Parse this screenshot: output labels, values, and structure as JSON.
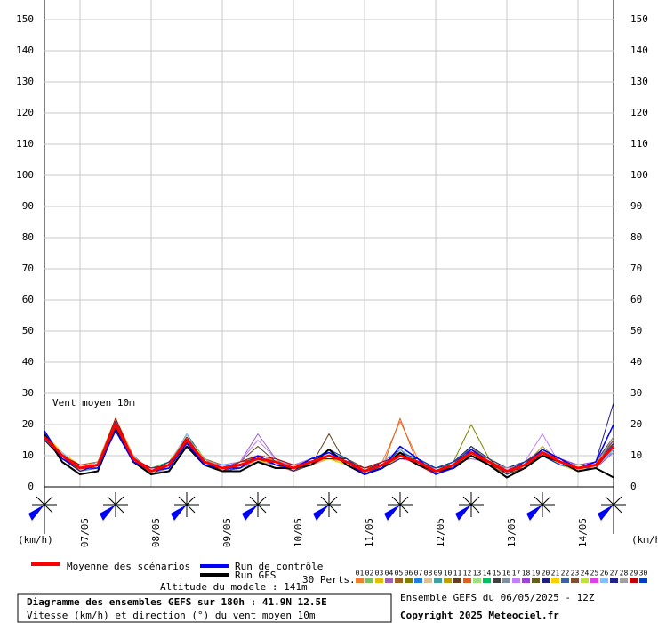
{
  "chart_data": {
    "type": "line",
    "annotation": "Vent moyen 10m",
    "y_unit_left": "(km/h)",
    "y_unit_right": "(km/h)",
    "altitude": "Altitude du modele : 141m",
    "perts_label": "30 Perts.",
    "title": "Diagramme des ensembles GEFS sur 180h : 41.9N 12.5E",
    "subtitle": "Vitesse (km/h) et direction (°) du vent moyen 10m",
    "run_info": "Ensemble GEFS du 06/05/2025 - 12Z",
    "copyright": "Copyright 2025 Meteociel.fr",
    "xlim": [
      0,
      192
    ],
    "xticks": [
      {
        "value": 12,
        "label": "07/05"
      },
      {
        "value": 36,
        "label": "08/05"
      },
      {
        "value": 60,
        "label": "09/05"
      },
      {
        "value": 84,
        "label": "10/05"
      },
      {
        "value": 108,
        "label": "11/05"
      },
      {
        "value": 132,
        "label": "12/05"
      },
      {
        "value": 156,
        "label": "13/05"
      },
      {
        "value": 180,
        "label": "14/05"
      }
    ],
    "ylim": [
      0,
      150
    ],
    "yticks": [
      0,
      10,
      20,
      30,
      40,
      50,
      60,
      70,
      80,
      90,
      100,
      110,
      120,
      130,
      140,
      150
    ],
    "grid": true,
    "x": [
      0,
      6,
      12,
      18,
      24,
      30,
      36,
      42,
      48,
      54,
      60,
      66,
      72,
      78,
      84,
      90,
      96,
      102,
      108,
      114,
      120,
      126,
      132,
      138,
      144,
      150,
      156,
      162,
      168,
      174,
      180,
      186,
      192
    ],
    "main_series": [
      {
        "name": "Moyenne des scénarios",
        "color": "#ff0000",
        "values": [
          16,
          10,
          6,
          7,
          20,
          9,
          5,
          7,
          15,
          8,
          6,
          7,
          9,
          8,
          6,
          8,
          10,
          8,
          5,
          7,
          10,
          8,
          5,
          7,
          11,
          8,
          5,
          7,
          11,
          8,
          6,
          7,
          13
        ]
      },
      {
        "name": "Run de contrôle",
        "color": "#0000ff",
        "values": [
          18,
          9,
          6,
          6,
          18,
          8,
          5,
          6,
          14,
          7,
          6,
          6,
          10,
          7,
          6,
          9,
          11,
          8,
          4,
          6,
          13,
          9,
          4,
          6,
          12,
          8,
          5,
          7,
          12,
          9,
          6,
          8,
          20
        ]
      },
      {
        "name": "Run GFS",
        "color": "#000000",
        "values": [
          17,
          8,
          4,
          5,
          19,
          8,
          4,
          5,
          13,
          7,
          5,
          5,
          8,
          6,
          6,
          7,
          12,
          7,
          4,
          6,
          11,
          7,
          5,
          6,
          10,
          7,
          3,
          6,
          10,
          8,
          5,
          6,
          3
        ]
      }
    ],
    "series": [
      {
        "name": "01",
        "color": "#f08030",
        "values": [
          15,
          9,
          7,
          8,
          22,
          10,
          4,
          6,
          16,
          9,
          5,
          8,
          10,
          7,
          5,
          7,
          9,
          9,
          6,
          8,
          21,
          9,
          6,
          8,
          12,
          7,
          4,
          6,
          10,
          9,
          7,
          8,
          14
        ]
      },
      {
        "name": "02",
        "color": "#80c060",
        "values": [
          16,
          11,
          6,
          7,
          19,
          8,
          5,
          8,
          14,
          8,
          7,
          7,
          8,
          9,
          7,
          8,
          11,
          7,
          4,
          6,
          9,
          8,
          5,
          7,
          10,
          9,
          6,
          8,
          12,
          7,
          5,
          6,
          12
        ]
      },
      {
        "name": "03",
        "color": "#e0c000",
        "values": [
          17,
          10,
          5,
          6,
          21,
          9,
          6,
          7,
          17,
          7,
          5,
          6,
          9,
          8,
          6,
          9,
          10,
          8,
          5,
          7,
          11,
          9,
          4,
          6,
          11,
          8,
          5,
          7,
          12,
          8,
          6,
          7,
          15
        ]
      },
      {
        "name": "04",
        "color": "#a060c0",
        "values": [
          15,
          9,
          6,
          7,
          20,
          10,
          5,
          7,
          15,
          8,
          6,
          8,
          17,
          9,
          6,
          8,
          12,
          7,
          4,
          7,
          10,
          7,
          6,
          8,
          9,
          8,
          6,
          7,
          11,
          9,
          5,
          6,
          11
        ]
      },
      {
        "name": "05",
        "color": "#a06020",
        "values": [
          16,
          10,
          7,
          8,
          18,
          9,
          4,
          6,
          14,
          9,
          7,
          7,
          9,
          7,
          5,
          7,
          9,
          8,
          6,
          8,
          9,
          8,
          5,
          7,
          13,
          7,
          4,
          6,
          10,
          8,
          6,
          8,
          16
        ]
      },
      {
        "name": "06",
        "color": "#808000",
        "values": [
          17,
          11,
          6,
          7,
          21,
          8,
          5,
          8,
          16,
          8,
          5,
          6,
          8,
          8,
          7,
          9,
          11,
          9,
          5,
          6,
          10,
          9,
          6,
          8,
          20,
          9,
          5,
          6,
          12,
          9,
          7,
          7,
          13
        ]
      },
      {
        "name": "07",
        "color": "#2080e0",
        "values": [
          16,
          9,
          5,
          6,
          19,
          9,
          6,
          7,
          15,
          7,
          6,
          7,
          10,
          9,
          6,
          8,
          10,
          8,
          5,
          7,
          12,
          8,
          4,
          6,
          11,
          8,
          6,
          8,
          11,
          8,
          5,
          6,
          12
        ]
      },
      {
        "name": "08",
        "color": "#e0c090",
        "values": [
          15,
          10,
          6,
          8,
          20,
          10,
          5,
          6,
          14,
          8,
          6,
          8,
          9,
          8,
          5,
          7,
          9,
          7,
          6,
          8,
          10,
          7,
          5,
          7,
          10,
          9,
          5,
          7,
          10,
          7,
          6,
          7,
          14
        ]
      },
      {
        "name": "09",
        "color": "#40a0a0",
        "values": [
          17,
          10,
          7,
          7,
          22,
          9,
          4,
          7,
          17,
          9,
          5,
          6,
          8,
          7,
          6,
          9,
          11,
          9,
          5,
          6,
          11,
          8,
          6,
          8,
          12,
          8,
          4,
          6,
          12,
          9,
          6,
          8,
          11
        ]
      },
      {
        "name": "10",
        "color": "#c0a000",
        "values": [
          16,
          9,
          6,
          6,
          20,
          8,
          5,
          8,
          15,
          8,
          7,
          7,
          9,
          9,
          7,
          8,
          10,
          8,
          4,
          7,
          9,
          9,
          5,
          7,
          11,
          7,
          5,
          7,
          13,
          8,
          5,
          6,
          15
        ]
      },
      {
        "name": "11",
        "color": "#604020",
        "values": [
          15,
          11,
          5,
          7,
          18,
          9,
          6,
          7,
          13,
          7,
          6,
          8,
          13,
          8,
          6,
          7,
          17,
          7,
          5,
          8,
          10,
          8,
          6,
          8,
          10,
          8,
          6,
          8,
          11,
          9,
          6,
          7,
          12
        ]
      },
      {
        "name": "12",
        "color": "#e06020",
        "values": [
          16,
          10,
          6,
          8,
          21,
          10,
          5,
          6,
          16,
          9,
          5,
          6,
          9,
          7,
          5,
          8,
          10,
          8,
          6,
          6,
          22,
          7,
          5,
          6,
          11,
          9,
          5,
          6,
          12,
          8,
          7,
          8,
          13
        ]
      },
      {
        "name": "13",
        "color": "#a0e080",
        "values": [
          17,
          9,
          7,
          7,
          19,
          9,
          4,
          7,
          15,
          8,
          6,
          7,
          8,
          8,
          6,
          9,
          11,
          9,
          5,
          7,
          11,
          8,
          4,
          7,
          12,
          8,
          6,
          7,
          10,
          7,
          5,
          6,
          14
        ]
      },
      {
        "name": "14",
        "color": "#00c060",
        "values": [
          16,
          10,
          6,
          6,
          20,
          8,
          6,
          8,
          14,
          7,
          7,
          8,
          10,
          9,
          7,
          8,
          9,
          7,
          5,
          8,
          10,
          9,
          5,
          8,
          11,
          7,
          5,
          8,
          11,
          9,
          6,
          7,
          12
        ]
      },
      {
        "name": "15",
        "color": "#404040",
        "values": [
          15,
          10,
          5,
          7,
          22,
          9,
          5,
          7,
          17,
          8,
          5,
          6,
          9,
          8,
          5,
          7,
          10,
          8,
          4,
          6,
          12,
          8,
          6,
          7,
          10,
          8,
          4,
          6,
          12,
          8,
          6,
          8,
          16
        ]
      },
      {
        "name": "16",
        "color": "#8090a0",
        "values": [
          16,
          11,
          6,
          8,
          20,
          10,
          4,
          6,
          15,
          9,
          6,
          7,
          8,
          7,
          6,
          8,
          11,
          9,
          6,
          7,
          10,
          7,
          5,
          6,
          12,
          9,
          5,
          7,
          11,
          8,
          5,
          6,
          13
        ]
      },
      {
        "name": "17",
        "color": "#c080ff",
        "values": [
          17,
          9,
          7,
          7,
          19,
          9,
          5,
          8,
          16,
          8,
          7,
          8,
          15,
          9,
          7,
          9,
          10,
          8,
          5,
          8,
          9,
          8,
          6,
          8,
          11,
          8,
          6,
          8,
          17,
          7,
          6,
          7,
          11
        ]
      },
      {
        "name": "18",
        "color": "#a040e0",
        "values": [
          16,
          10,
          6,
          6,
          21,
          8,
          6,
          7,
          14,
          7,
          6,
          6,
          9,
          8,
          6,
          7,
          12,
          7,
          4,
          6,
          11,
          9,
          5,
          7,
          10,
          7,
          5,
          6,
          12,
          9,
          7,
          8,
          15
        ]
      },
      {
        "name": "19",
        "color": "#606020",
        "values": [
          15,
          10,
          5,
          7,
          20,
          9,
          5,
          6,
          15,
          8,
          5,
          7,
          10,
          9,
          5,
          8,
          10,
          9,
          6,
          7,
          10,
          8,
          4,
          6,
          13,
          8,
          4,
          7,
          11,
          8,
          5,
          6,
          12
        ]
      },
      {
        "name": "20",
        "color": "#202080",
        "values": [
          16,
          9,
          6,
          8,
          18,
          10,
          4,
          7,
          13,
          9,
          6,
          8,
          9,
          7,
          6,
          9,
          11,
          8,
          5,
          8,
          12,
          7,
          6,
          8,
          11,
          9,
          6,
          8,
          10,
          7,
          6,
          7,
          14
        ]
      },
      {
        "name": "21",
        "color": "#ffd000",
        "values": [
          17,
          11,
          7,
          7,
          22,
          9,
          5,
          8,
          16,
          8,
          7,
          7,
          8,
          8,
          7,
          8,
          9,
          7,
          5,
          6,
          9,
          9,
          5,
          7,
          10,
          8,
          5,
          6,
          12,
          8,
          5,
          8,
          13
        ]
      },
      {
        "name": "22",
        "color": "#4060a0",
        "values": [
          16,
          10,
          6,
          6,
          20,
          8,
          6,
          6,
          15,
          7,
          5,
          6,
          10,
          9,
          6,
          7,
          10,
          8,
          4,
          7,
          11,
          8,
          6,
          8,
          12,
          7,
          6,
          7,
          11,
          9,
          6,
          6,
          12
        ]
      },
      {
        "name": "23",
        "color": "#805030",
        "values": [
          15,
          9,
          5,
          7,
          19,
          9,
          5,
          7,
          14,
          8,
          6,
          8,
          9,
          8,
          5,
          8,
          12,
          9,
          6,
          8,
          10,
          8,
          5,
          6,
          11,
          8,
          4,
          8,
          12,
          8,
          7,
          7,
          15
        ]
      },
      {
        "name": "24",
        "color": "#c0e040",
        "values": [
          16,
          10,
          6,
          8,
          21,
          10,
          4,
          8,
          16,
          9,
          6,
          7,
          8,
          7,
          6,
          9,
          10,
          7,
          5,
          6,
          11,
          9,
          4,
          7,
          10,
          9,
          5,
          7,
          11,
          7,
          5,
          8,
          13
        ]
      },
      {
        "name": "25",
        "color": "#e040e0",
        "values": [
          17,
          10,
          7,
          7,
          20,
          9,
          6,
          6,
          15,
          8,
          7,
          6,
          9,
          8,
          7,
          8,
          11,
          8,
          5,
          7,
          10,
          7,
          6,
          8,
          12,
          8,
          6,
          6,
          10,
          8,
          6,
          7,
          14
        ]
      },
      {
        "name": "26",
        "color": "#80c0ff",
        "values": [
          16,
          11,
          6,
          6,
          19,
          8,
          5,
          7,
          17,
          7,
          5,
          8,
          10,
          9,
          6,
          7,
          10,
          8,
          6,
          8,
          12,
          8,
          5,
          7,
          11,
          7,
          5,
          7,
          12,
          9,
          5,
          6,
          12
        ]
      },
      {
        "name": "27",
        "color": "#202090",
        "values": [
          15,
          9,
          5,
          7,
          21,
          9,
          5,
          8,
          14,
          8,
          6,
          7,
          9,
          8,
          5,
          9,
          9,
          9,
          4,
          6,
          9,
          9,
          6,
          8,
          13,
          9,
          4,
          8,
          11,
          8,
          6,
          8,
          27
        ]
      },
      {
        "name": "28",
        "color": "#a0a0a0",
        "values": [
          16,
          10,
          6,
          8,
          20,
          10,
          4,
          6,
          15,
          9,
          6,
          6,
          8,
          7,
          6,
          8,
          11,
          7,
          5,
          7,
          11,
          8,
          5,
          6,
          10,
          8,
          6,
          7,
          12,
          8,
          7,
          7,
          16
        ]
      },
      {
        "name": "29",
        "color": "#c00000",
        "values": [
          17,
          10,
          7,
          7,
          22,
          9,
          6,
          7,
          16,
          8,
          5,
          8,
          10,
          9,
          7,
          7,
          10,
          8,
          6,
          8,
          10,
          7,
          4,
          7,
          11,
          7,
          5,
          6,
          11,
          9,
          5,
          6,
          13
        ]
      },
      {
        "name": "30",
        "color": "#0040c0",
        "values": [
          16,
          9,
          6,
          6,
          19,
          8,
          5,
          7,
          15,
          7,
          7,
          7,
          9,
          8,
          6,
          8,
          12,
          9,
          5,
          6,
          11,
          9,
          6,
          8,
          12,
          8,
          5,
          8,
          10,
          7,
          6,
          7,
          14
        ]
      }
    ]
  }
}
